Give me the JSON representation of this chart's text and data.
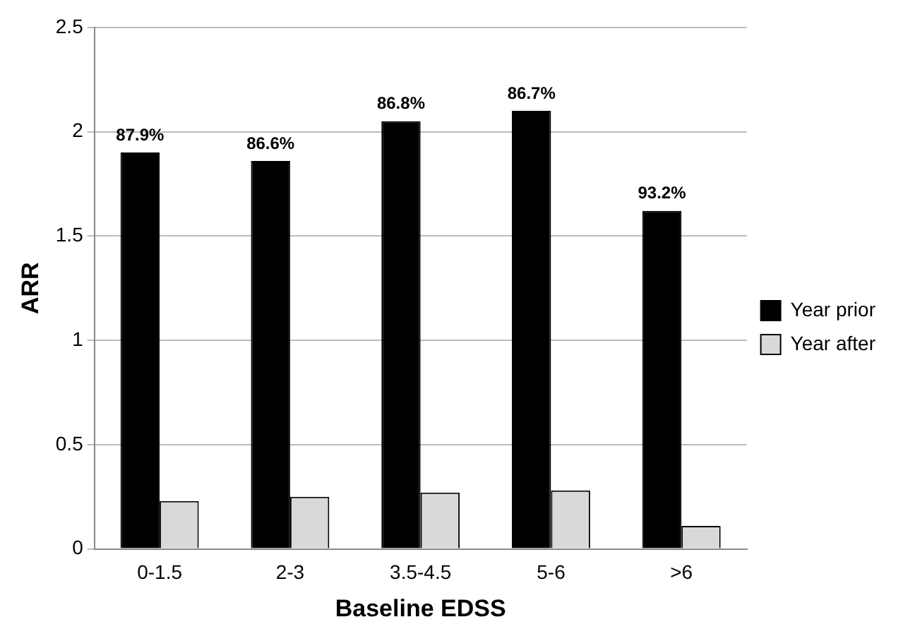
{
  "chart_data": {
    "type": "bar",
    "xlabel": "Baseline EDSS",
    "ylabel": "ARR",
    "categories": [
      "0-1.5",
      "2-3",
      "3.5-4.5",
      "5-6",
      ">6"
    ],
    "series": [
      {
        "name": "Year prior",
        "color": "#000000",
        "values": [
          1.9,
          1.86,
          2.05,
          2.1,
          1.62
        ]
      },
      {
        "name": "Year after",
        "color": "#d9d9d9",
        "values": [
          0.23,
          0.25,
          0.27,
          0.28,
          0.11
        ]
      }
    ],
    "annotations": [
      {
        "text": "87.9%",
        "x": "0-1.5",
        "y": 1.9
      },
      {
        "text": "86.6%",
        "x": "2-3",
        "y": 1.86
      },
      {
        "text": "86.8%",
        "x": "3.5-4.5",
        "y": 2.05
      },
      {
        "text": "86.7%",
        "x": "5-6",
        "y": 2.1
      },
      {
        "text": "93.2%",
        "x": ">6",
        "y": 1.62
      }
    ],
    "ylim": [
      0,
      2.5
    ],
    "yticks": [
      0,
      0.5,
      1,
      1.5,
      2,
      2.5
    ],
    "grid": "y",
    "legend": "right"
  }
}
